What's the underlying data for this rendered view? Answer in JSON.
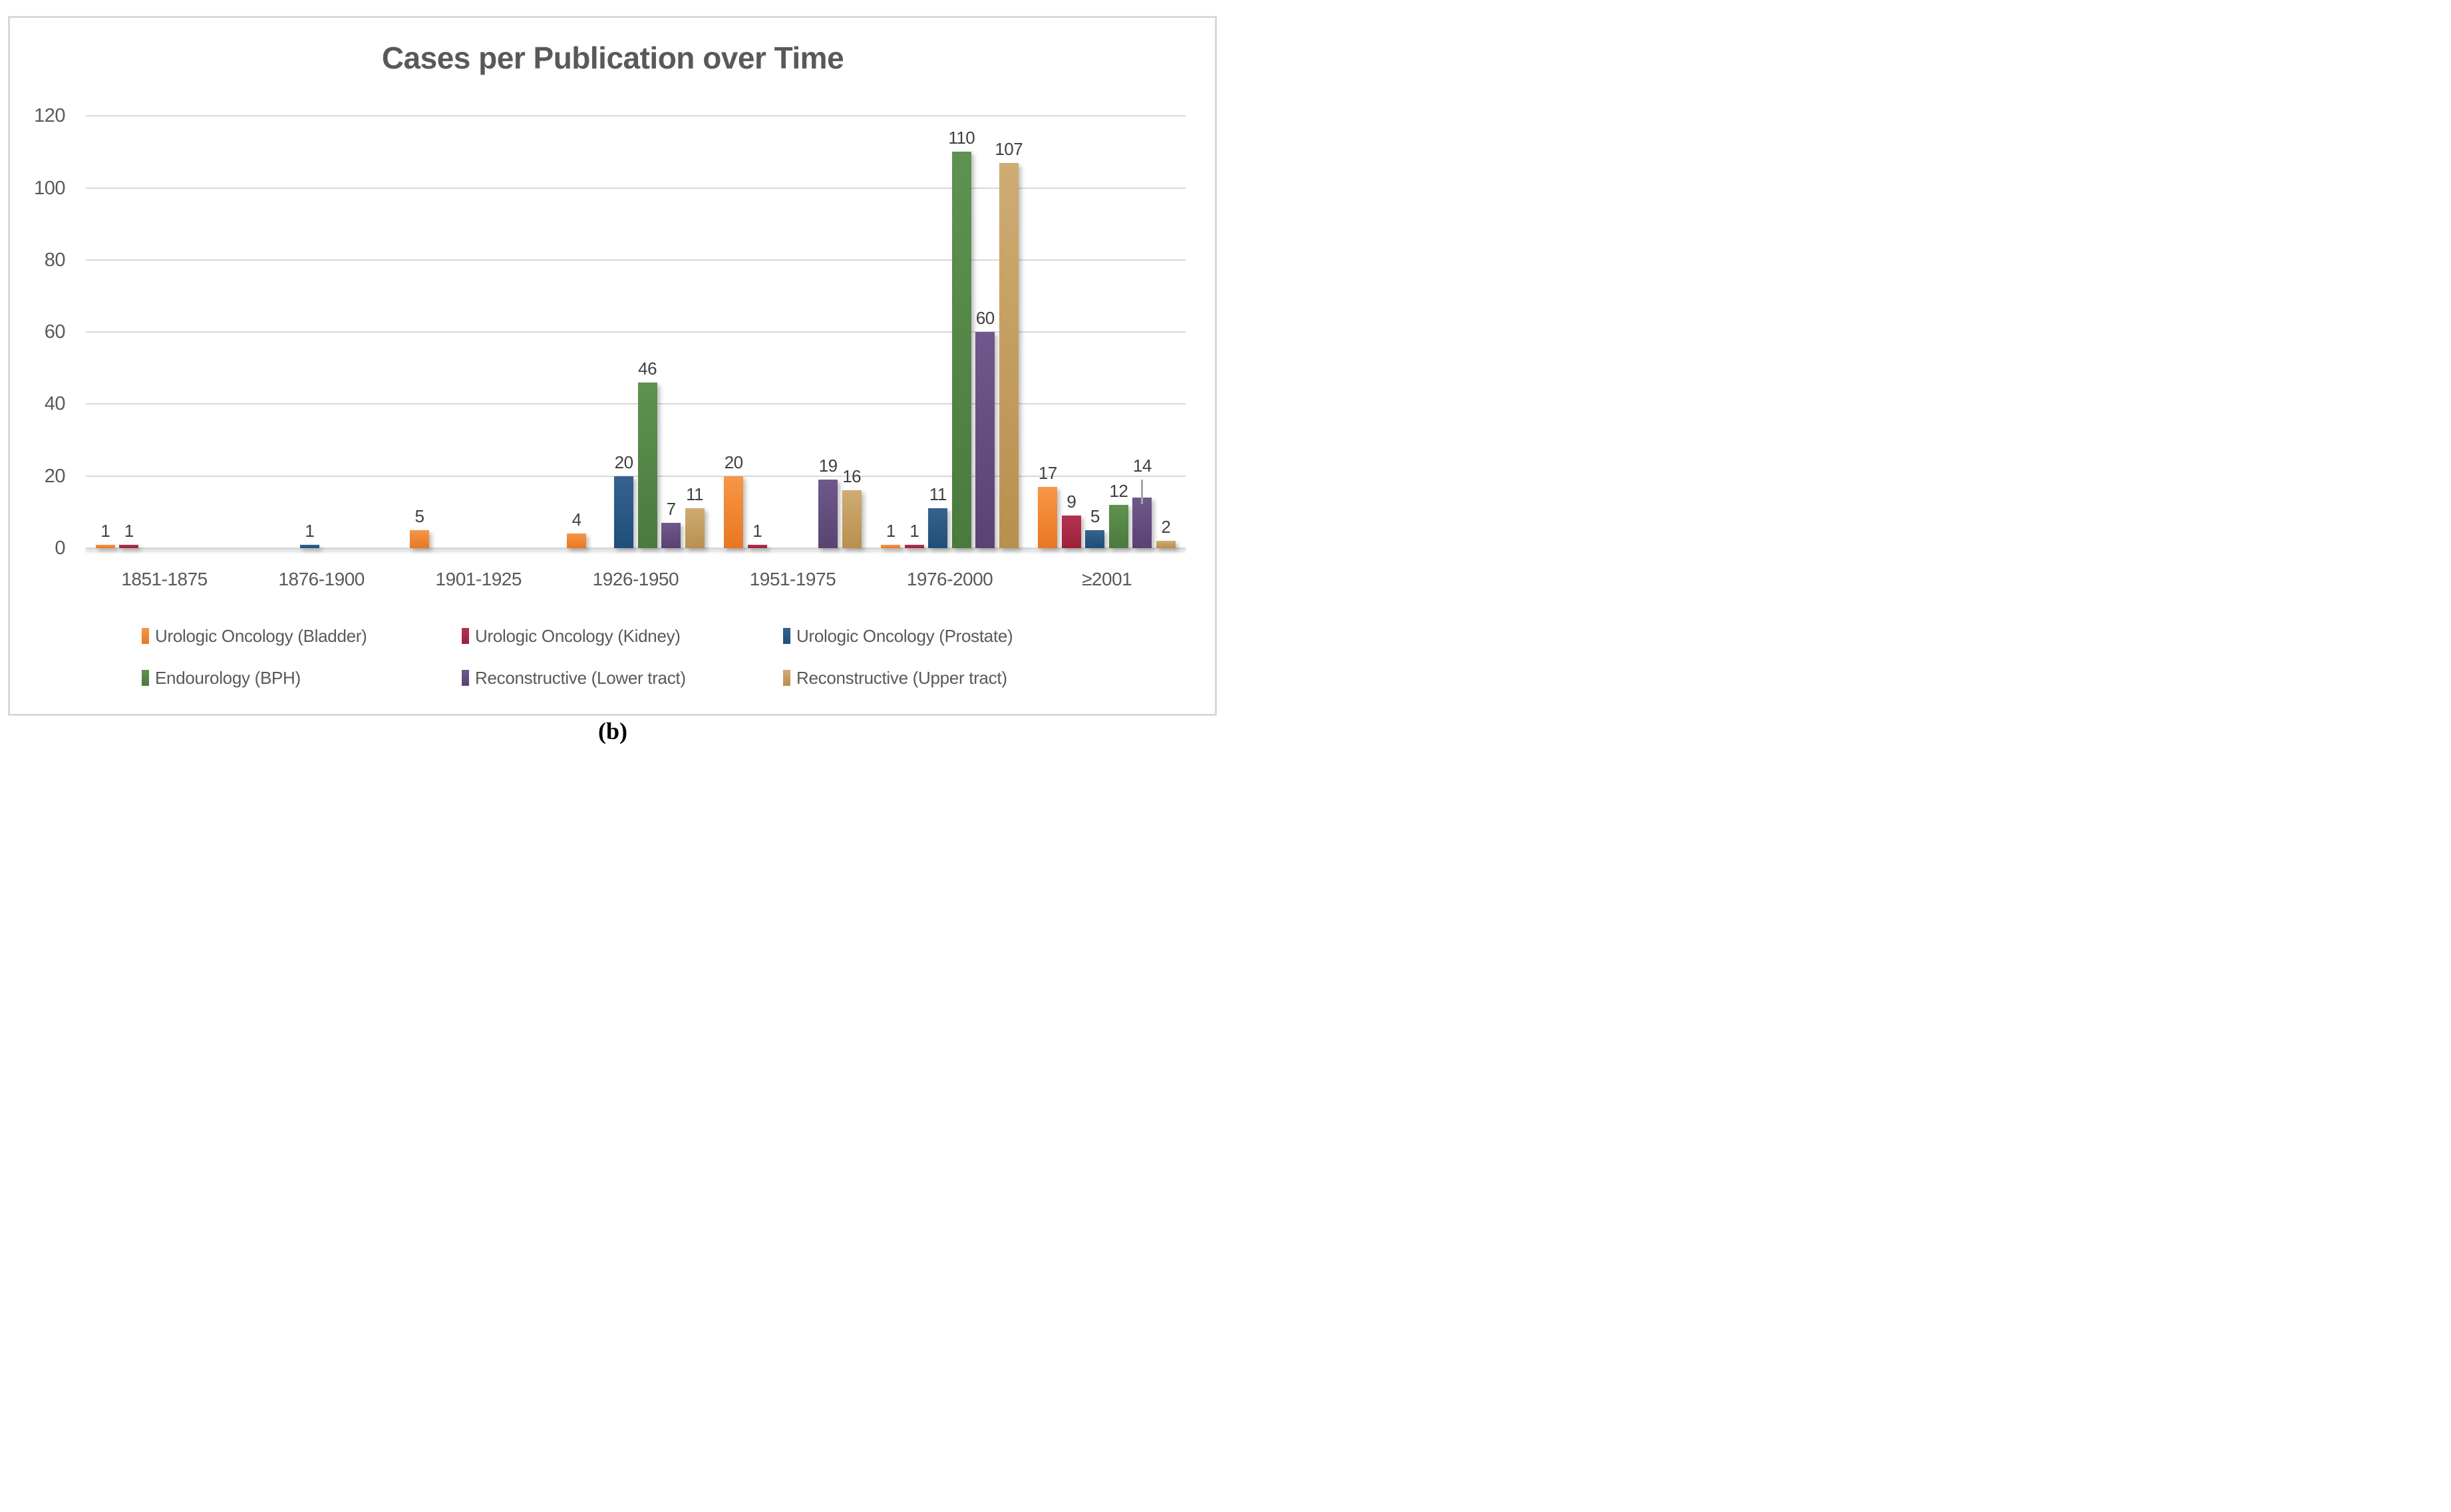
{
  "title": "Cases per Publication over Time",
  "caption": "(b)",
  "styles": {
    "background": "#FFFFFF",
    "border_color": "#D9D9D9",
    "grid_color": "#D9D9D9",
    "axis_text_color": "#595959",
    "title_color": "#595959",
    "data_label_color": "#3F3F3F",
    "error_bar_color": "#A6A6A6"
  },
  "chart_data": {
    "type": "bar",
    "title": "Cases per Publication over Time",
    "categories": [
      "1851-1875",
      "1876-1900",
      "1901-1925",
      "1926-1950",
      "1951-1975",
      "1976-2000",
      "≥2001"
    ],
    "series": [
      {
        "name": "Urologic Oncology (Bladder)",
        "color": "#ED7D31",
        "gradient": [
          "#F79646",
          "#E87722"
        ],
        "values": [
          1,
          0,
          5,
          4,
          20,
          1,
          17
        ]
      },
      {
        "name": "Urologic Oncology (Kidney)",
        "color": "#A72B43",
        "gradient": [
          "#B23350",
          "#9C2038"
        ],
        "values": [
          1,
          0,
          0,
          0,
          1,
          1,
          9
        ]
      },
      {
        "name": "Urologic Oncology (Prostate)",
        "color": "#2C5E88",
        "gradient": [
          "#35638D",
          "#1F4E79"
        ],
        "values": [
          0,
          1,
          0,
          20,
          0,
          11,
          5
        ]
      },
      {
        "name": "Endourology (BPH)",
        "color": "#558845",
        "gradient": [
          "#5F9250",
          "#4A7A3D"
        ],
        "values": [
          0,
          0,
          0,
          46,
          0,
          110,
          12
        ]
      },
      {
        "name": "Reconstructive (Lower tract)",
        "color": "#64507F",
        "gradient": [
          "#6F588B",
          "#594372"
        ],
        "values": [
          0,
          0,
          0,
          7,
          19,
          60,
          14
        ]
      },
      {
        "name": "Reconstructive (Upper tract)",
        "color": "#C4A060",
        "gradient": [
          "#CEAC72",
          "#B98F4E"
        ],
        "values": [
          0,
          0,
          0,
          11,
          16,
          107,
          2
        ]
      }
    ],
    "y_axis": {
      "min": 0,
      "max": 120,
      "step": 20,
      "tick_labels": [
        "0",
        "20",
        "40",
        "60",
        "80",
        "100",
        "120"
      ]
    },
    "error_bars": [
      {
        "series": "Reconstructive (Lower tract)",
        "category": "≥2001",
        "value": 14,
        "upper": 19
      }
    ],
    "grid": true,
    "data_labels": true,
    "legend_position": "bottom",
    "legend_rows": 2
  }
}
